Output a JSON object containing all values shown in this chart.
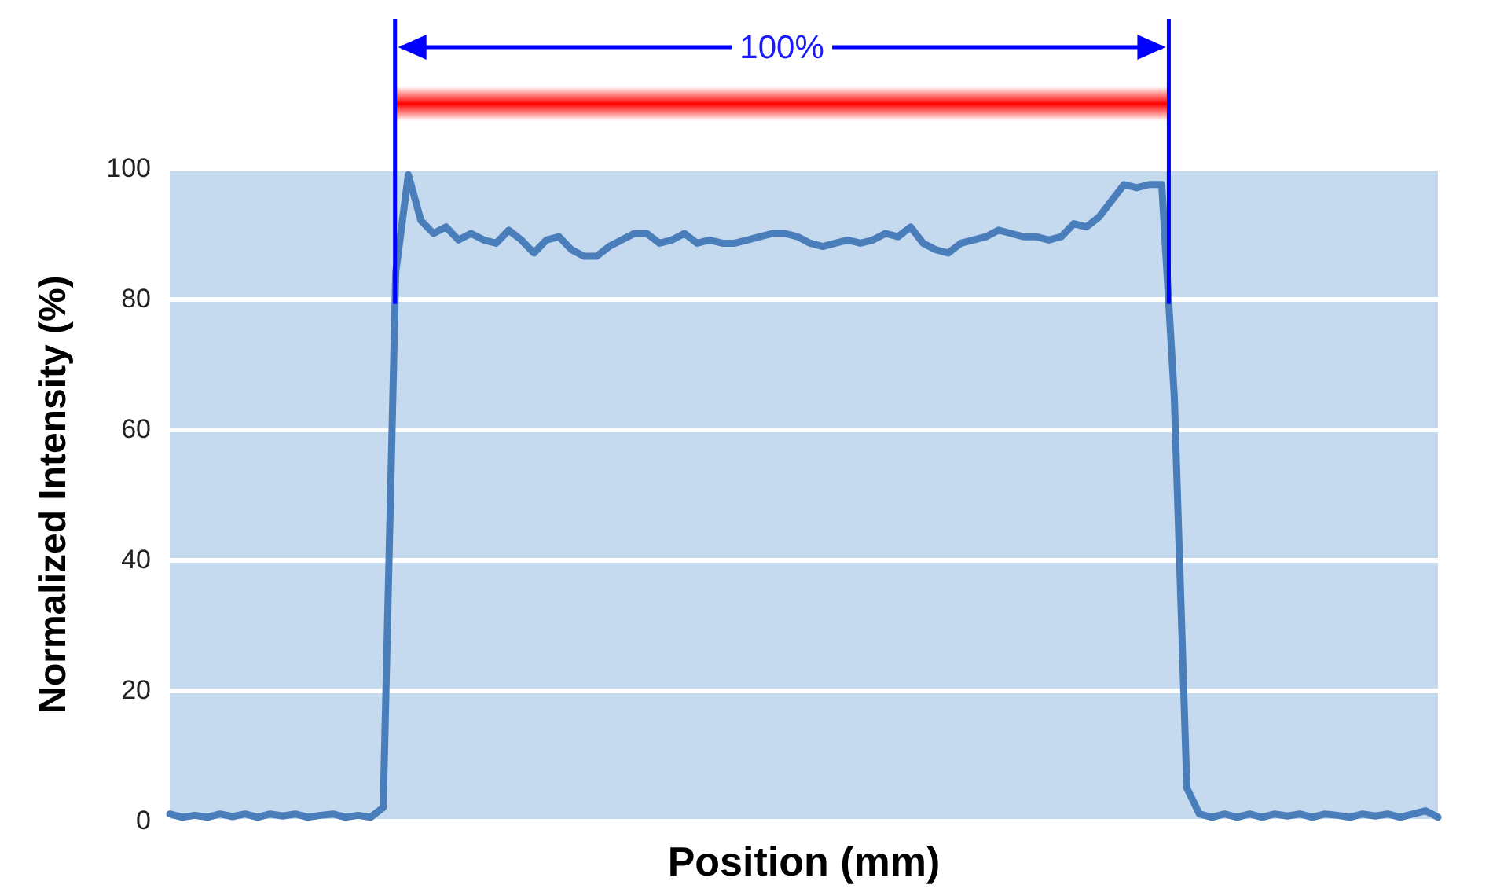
{
  "chart_data": {
    "type": "line",
    "xlabel": "Position (mm)",
    "ylabel": "Normalized Intensity (%)",
    "categories": [
      null,
      null,
      null,
      null,
      null,
      null,
      null,
      null,
      null,
      null,
      null,
      null,
      null,
      null,
      null,
      null,
      null,
      null,
      null,
      null,
      null,
      null,
      null,
      null,
      null,
      null,
      null,
      null,
      null,
      null,
      null,
      null,
      null,
      null,
      null,
      null,
      null,
      null,
      null,
      null,
      null,
      null,
      null,
      null,
      null,
      null,
      null,
      null,
      null,
      null,
      null,
      null,
      null,
      null,
      null,
      null,
      null,
      null,
      null,
      null,
      null,
      null,
      null,
      null,
      null,
      null,
      null,
      null,
      null,
      null,
      null,
      null,
      null,
      null,
      null,
      null,
      null,
      null,
      null,
      null,
      null,
      null,
      null,
      null,
      null,
      null,
      null,
      null,
      null,
      null,
      null,
      null,
      null,
      null,
      null,
      null,
      null,
      null,
      null,
      null,
      null,
      null
    ],
    "series": [
      {
        "color": "#4a7ebb",
        "values": [
          1,
          0.5,
          0.8,
          0.5,
          1,
          0.6,
          1,
          0.5,
          1,
          0.7,
          1,
          0.5,
          0.8,
          1,
          0.5,
          0.8,
          0.5,
          2,
          84,
          99,
          92,
          90,
          91,
          89,
          90,
          89,
          88.5,
          90.5,
          89,
          87,
          89,
          89.5,
          87.5,
          86.5,
          86.5,
          88,
          89,
          90,
          90,
          88.5,
          89,
          90,
          88.5,
          89,
          88.5,
          88.5,
          89,
          89.5,
          90,
          90,
          89.5,
          88.5,
          88,
          88.5,
          89,
          88.5,
          89,
          90,
          89.5,
          91,
          88.5,
          87.5,
          87,
          88.5,
          89,
          89.5,
          90.5,
          90,
          89.5,
          89.5,
          89,
          89.5,
          91.5,
          91,
          92.5,
          95,
          97.5,
          97,
          97.5,
          97.5,
          65,
          5,
          1,
          0.5,
          1,
          0.5,
          1,
          0.5,
          1,
          0.7,
          1,
          0.5,
          1,
          0.8,
          0.5,
          1,
          0.7,
          1,
          0.5,
          1,
          1.5,
          0.5
        ]
      }
    ],
    "ylim": [
      0,
      100
    ],
    "yticks": [
      0,
      20,
      40,
      60,
      80,
      100
    ],
    "grid": "y",
    "marker": "none",
    "line_style": "solid",
    "annotations": [
      "100%"
    ]
  }
}
